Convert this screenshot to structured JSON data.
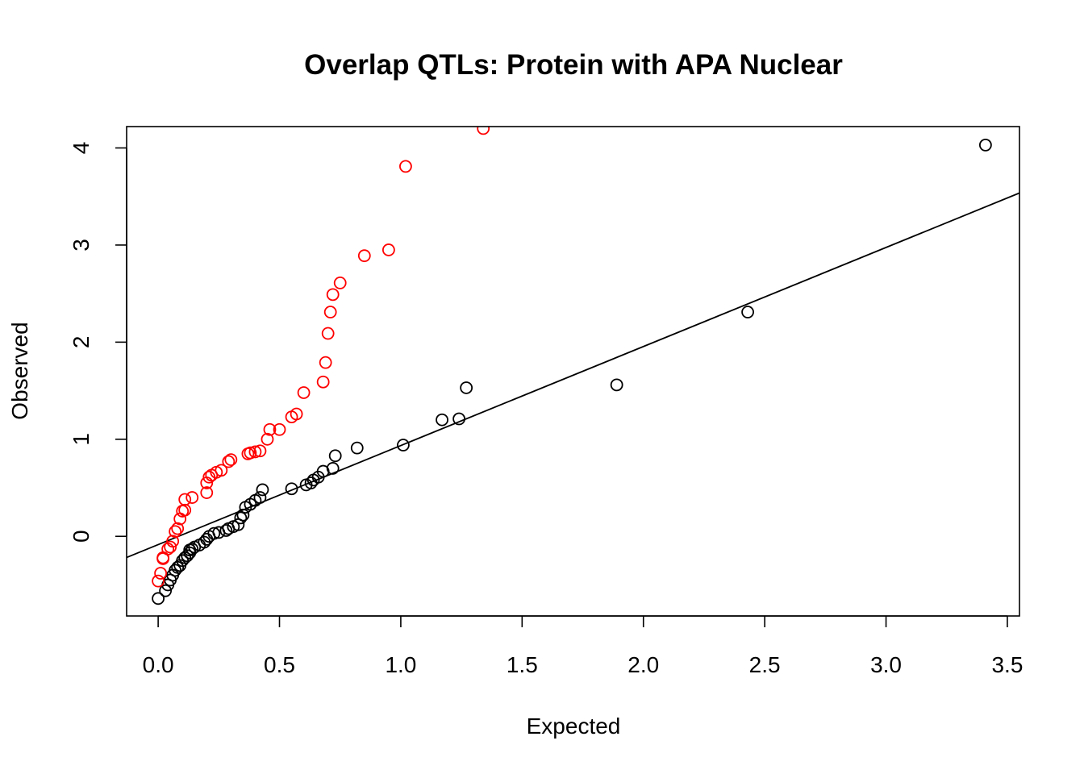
{
  "chart_data": {
    "type": "scatter",
    "title": "Overlap QTLs: Protein with APA Nuclear",
    "xlabel": "Expected",
    "ylabel": "Observed",
    "xlim": [
      -0.13,
      3.55
    ],
    "ylim": [
      -0.82,
      4.22
    ],
    "xticks": [
      "0.0",
      "0.5",
      "1.0",
      "1.5",
      "2.0",
      "2.5",
      "3.0",
      "3.5"
    ],
    "xtick_values": [
      0,
      0.5,
      1.0,
      1.5,
      2.0,
      2.5,
      3.0,
      3.5
    ],
    "yticks": [
      "0",
      "1",
      "2",
      "3",
      "4"
    ],
    "ytick_values": [
      0,
      1,
      2,
      3,
      4
    ],
    "grid": false,
    "series": [
      {
        "color": "#000000",
        "x": [
          0.0,
          0.03,
          0.04,
          0.05,
          0.06,
          0.07,
          0.08,
          0.09,
          0.1,
          0.11,
          0.12,
          0.13,
          0.13,
          0.14,
          0.15,
          0.17,
          0.19,
          0.2,
          0.21,
          0.23,
          0.25,
          0.28,
          0.29,
          0.31,
          0.33,
          0.34,
          0.35,
          0.36,
          0.38,
          0.4,
          0.42,
          0.43,
          0.55,
          0.61,
          0.63,
          0.64,
          0.66,
          0.68,
          0.72,
          0.73,
          0.82,
          1.01,
          1.17,
          1.24,
          1.27,
          1.89,
          2.43,
          3.41
        ],
        "y": [
          -0.64,
          -0.56,
          -0.5,
          -0.45,
          -0.4,
          -0.35,
          -0.32,
          -0.3,
          -0.25,
          -0.22,
          -0.2,
          -0.17,
          -0.14,
          -0.13,
          -0.11,
          -0.09,
          -0.06,
          -0.03,
          0.0,
          0.03,
          0.04,
          0.06,
          0.08,
          0.1,
          0.12,
          0.19,
          0.22,
          0.3,
          0.33,
          0.37,
          0.4,
          0.48,
          0.49,
          0.53,
          0.55,
          0.58,
          0.61,
          0.67,
          0.7,
          0.83,
          0.91,
          0.94,
          1.2,
          1.21,
          1.53,
          1.56,
          2.31,
          4.03
        ]
      },
      {
        "color": "#ff0000",
        "x": [
          0.0,
          0.01,
          0.02,
          0.02,
          0.04,
          0.05,
          0.06,
          0.07,
          0.08,
          0.09,
          0.1,
          0.11,
          0.11,
          0.14,
          0.2,
          0.2,
          0.21,
          0.22,
          0.24,
          0.26,
          0.29,
          0.3,
          0.37,
          0.38,
          0.4,
          0.42,
          0.45,
          0.46,
          0.5,
          0.55,
          0.57,
          0.6,
          0.68,
          0.69,
          0.7,
          0.71,
          0.72,
          0.75,
          0.85,
          0.95,
          1.02,
          1.34
        ],
        "y": [
          -0.46,
          -0.38,
          -0.23,
          -0.22,
          -0.13,
          -0.11,
          -0.05,
          0.05,
          0.08,
          0.18,
          0.26,
          0.27,
          0.38,
          0.4,
          0.45,
          0.55,
          0.61,
          0.63,
          0.66,
          0.68,
          0.77,
          0.79,
          0.85,
          0.86,
          0.87,
          0.88,
          1.0,
          1.1,
          1.1,
          1.23,
          1.26,
          1.48,
          1.59,
          1.79,
          2.09,
          2.31,
          2.49,
          2.61,
          2.89,
          2.95,
          3.81,
          4.2
        ]
      }
    ],
    "reference_line": {
      "intercept": -0.085,
      "slope": 1.02,
      "color": "#000000"
    }
  }
}
